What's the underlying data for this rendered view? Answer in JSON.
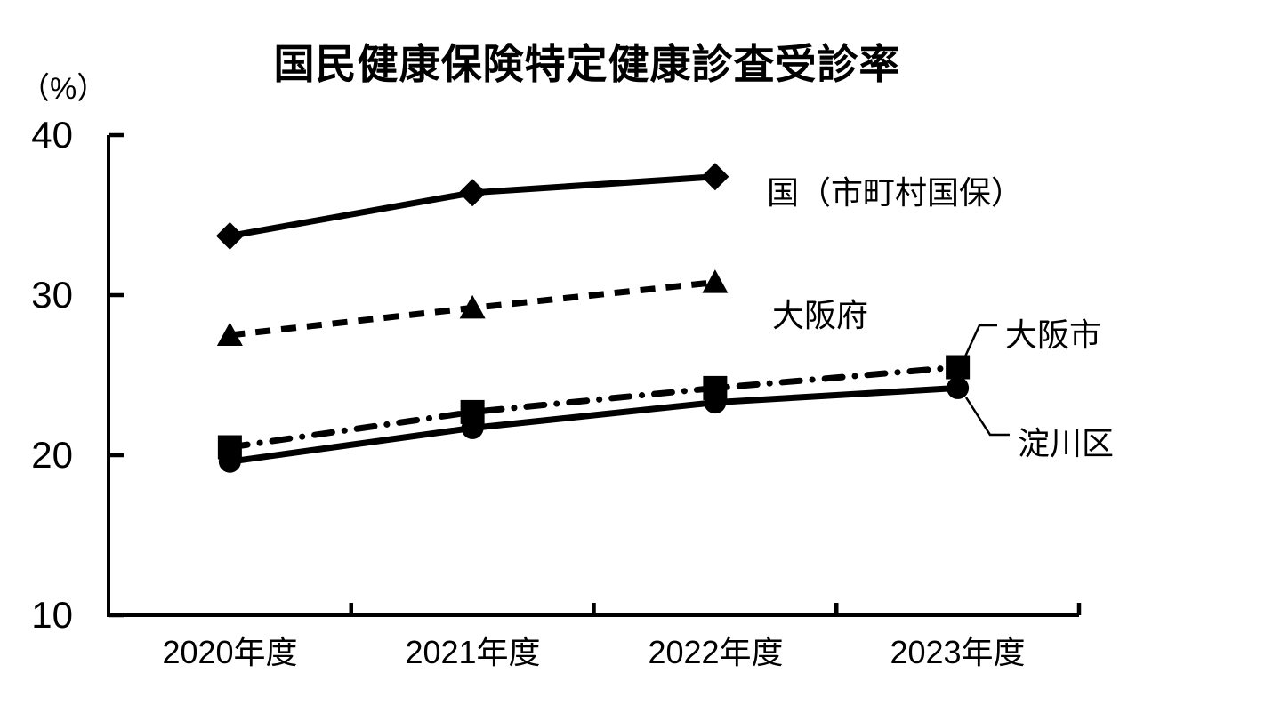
{
  "chart_data": {
    "type": "line",
    "title": "国民健康保険特定健康診査受診率",
    "ylabel": "（%）",
    "xlabel": "",
    "categories": [
      "2020年度",
      "2021年度",
      "2022年度",
      "2023年度"
    ],
    "series": [
      {
        "name": "国（市町村国保）",
        "marker": "diamond",
        "line": "solid",
        "values": [
          33.7,
          36.4,
          37.4,
          null
        ]
      },
      {
        "name": "大阪府",
        "marker": "triangle",
        "line": "dashed",
        "values": [
          27.5,
          29.2,
          30.8,
          null
        ]
      },
      {
        "name": "大阪市",
        "marker": "square",
        "line": "dashdot",
        "values": [
          20.5,
          22.7,
          24.2,
          25.5
        ]
      },
      {
        "name": "淀川区",
        "marker": "circle",
        "line": "solid",
        "values": [
          19.6,
          21.7,
          23.3,
          24.2
        ]
      }
    ],
    "ylim": [
      10,
      40
    ],
    "yticks": [
      40,
      30,
      20,
      10
    ],
    "grid": false,
    "legend_position": "inline-right",
    "line_color": "#000000",
    "axis_color": "#000000"
  }
}
